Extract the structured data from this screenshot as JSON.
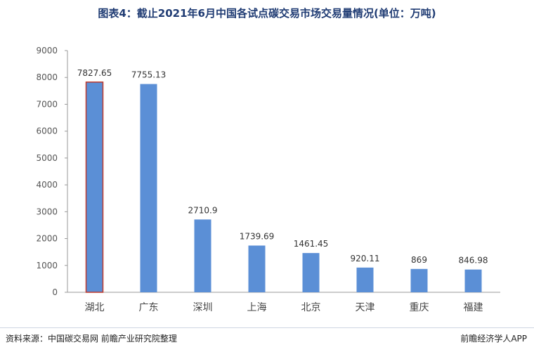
{
  "title": "图表4：截止2021年6月中国各试点碳交易市场交易量情况(单位：万吨)",
  "source": "资料来源：中国碳交易网 前瞻产业研究院整理",
  "credit": "前瞻经济学人APP",
  "colors": {
    "bar": "#5b8fd6",
    "highlight_border": "#c0392b",
    "axis": "#999999"
  },
  "chart_data": {
    "type": "bar",
    "title": "图表4：截止2021年6月中国各试点碳交易市场交易量情况(单位：万吨)",
    "xlabel": "",
    "ylabel": "",
    "categories": [
      "湖北",
      "广东",
      "深圳",
      "上海",
      "北京",
      "天津",
      "重庆",
      "福建"
    ],
    "values": [
      7827.65,
      7755.13,
      2710.9,
      1739.69,
      1461.45,
      920.11,
      869,
      846.98
    ],
    "value_labels": [
      "7827.65",
      "7755.13",
      "2710.9",
      "1739.69",
      "1461.45",
      "920.11",
      "869",
      "846.98"
    ],
    "ylim": [
      0,
      9000
    ],
    "yticks": [
      "0",
      "1000",
      "2000",
      "3000",
      "4000",
      "5000",
      "6000",
      "7000",
      "8000",
      "9000"
    ],
    "grid": false,
    "legend": "none",
    "highlighted_category": "湖北"
  }
}
